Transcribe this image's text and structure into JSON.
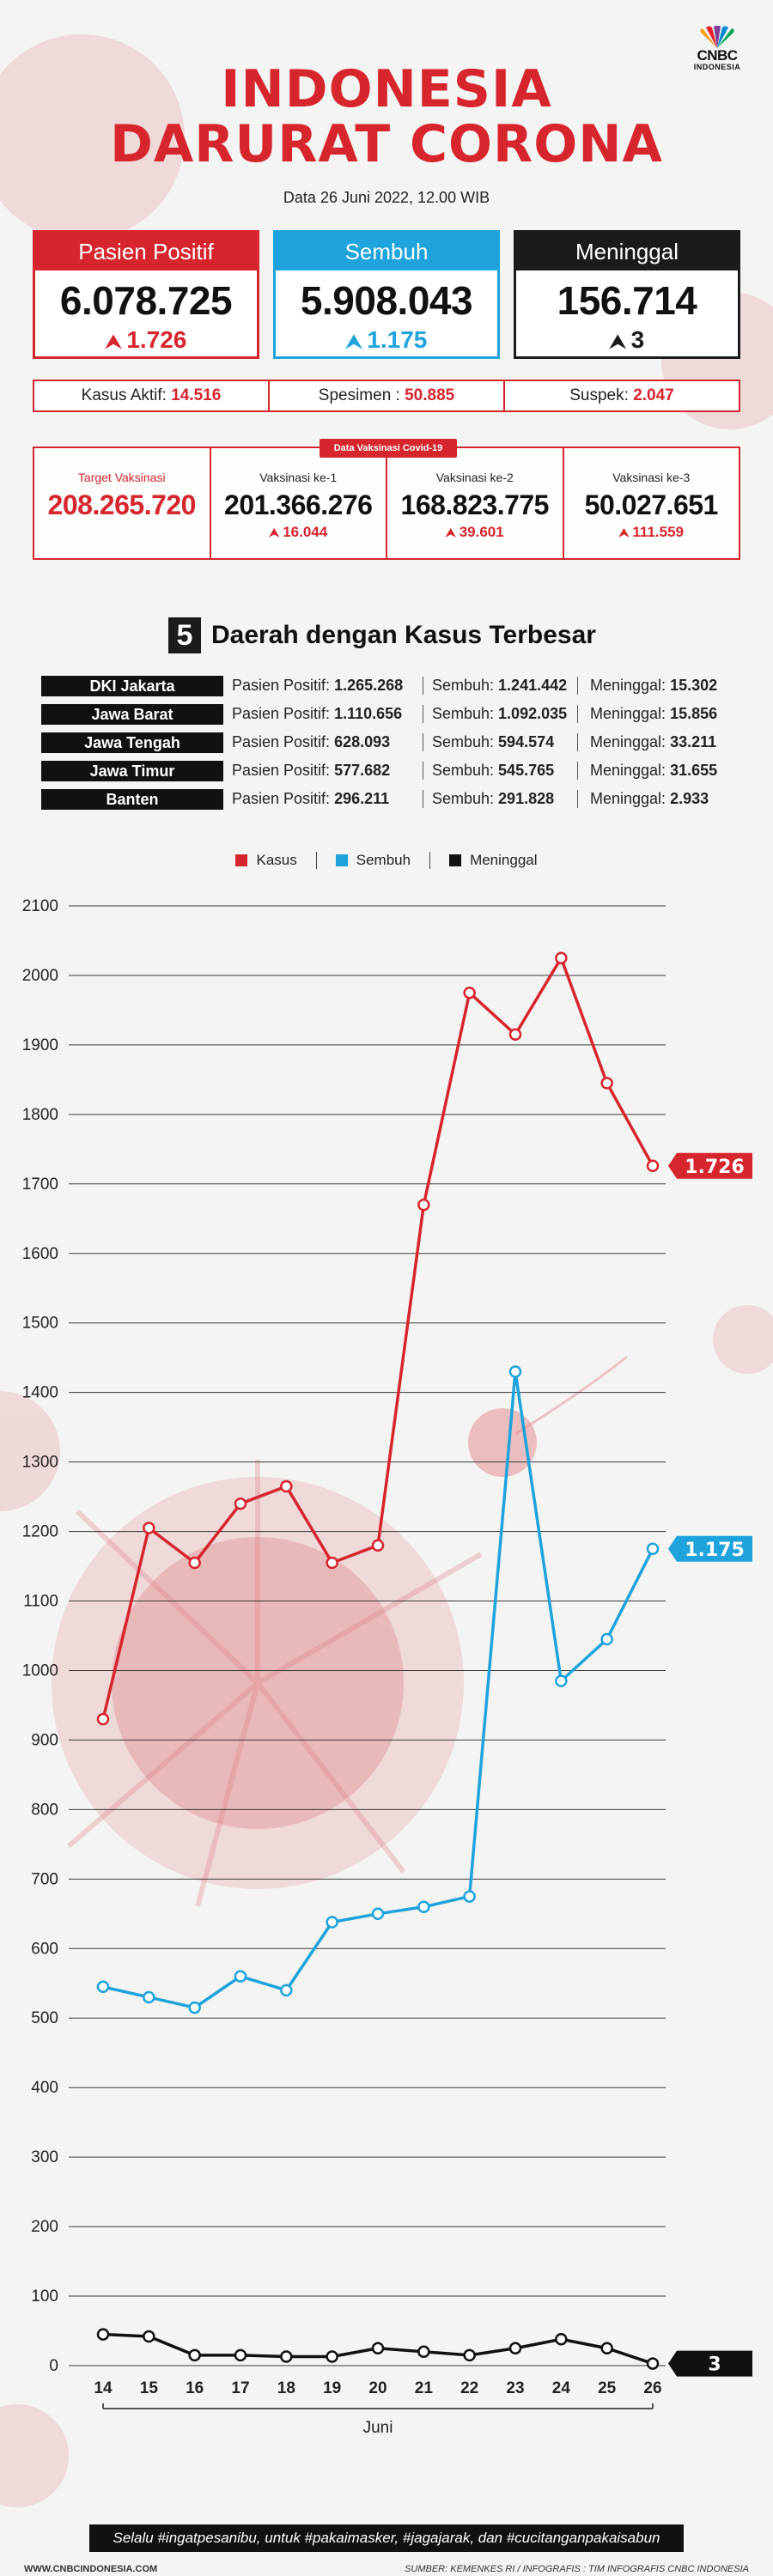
{
  "header": {
    "logo_text": "CNBC",
    "logo_sub": "INDONESIA",
    "title_line1": "INDONESIA",
    "title_line2": "DARURAT CORONA",
    "date": "Data 26 Juni 2022, 12.00 WIB"
  },
  "cards": [
    {
      "label": "Pasien Positif",
      "value": "6.078.725",
      "delta": "1.726",
      "color": "#d7252d"
    },
    {
      "label": "Sembuh",
      "value": "5.908.043",
      "delta": "1.175",
      "color": "#1ea3dd"
    },
    {
      "label": "Meninggal",
      "value": "156.714",
      "delta": "3",
      "color": "#1b1b1b"
    }
  ],
  "info": {
    "aktif_label": "Kasus Aktif: ",
    "aktif_value": "14.516",
    "spesimen_label": "Spesimen : ",
    "spesimen_value": "50.885",
    "suspek_label": "Suspek: ",
    "suspek_value": "2.047"
  },
  "vaccination": {
    "tag": "Data Vaksinasi Covid-19",
    "target_label": "Target Vaksinasi",
    "target_value": "208.265.720",
    "items": [
      {
        "label": "Vaksinasi ke-1",
        "value": "201.366.276",
        "delta": "16.044"
      },
      {
        "label": "Vaksinasi ke-2",
        "value": "168.823.775",
        "delta": "39.601"
      },
      {
        "label": "Vaksinasi ke-3",
        "value": "50.027.651",
        "delta": "111.559"
      }
    ]
  },
  "regions": {
    "number": "5",
    "title": "Daerah dengan Kasus Terbesar",
    "pos_label": "Pasien Positif: ",
    "sem_label": "Sembuh: ",
    "men_label": "Meninggal: ",
    "rows": [
      {
        "name": "DKI Jakarta",
        "positif": "1.265.268",
        "sembuh": "1.241.442",
        "meninggal": "15.302"
      },
      {
        "name": "Jawa Barat",
        "positif": "1.110.656",
        "sembuh": "1.092.035",
        "meninggal": "15.856"
      },
      {
        "name": "Jawa Tengah",
        "positif": "628.093",
        "sembuh": "594.574",
        "meninggal": "33.211"
      },
      {
        "name": "Jawa Timur",
        "positif": "577.682",
        "sembuh": "545.765",
        "meninggal": "31.655"
      },
      {
        "name": "Banten",
        "positif": "296.211",
        "sembuh": "291.828",
        "meninggal": "2.933"
      }
    ]
  },
  "chart_data": {
    "type": "line",
    "x": [
      14,
      15,
      16,
      17,
      18,
      19,
      20,
      21,
      22,
      23,
      24,
      25,
      26
    ],
    "xlabel": "Juni",
    "ylim": [
      0,
      2100
    ],
    "yticks": [
      0,
      100,
      200,
      300,
      400,
      500,
      600,
      700,
      800,
      900,
      1000,
      1100,
      1200,
      1300,
      1400,
      1500,
      1600,
      1700,
      1800,
      1900,
      2000,
      2100
    ],
    "grid": true,
    "legend_position": "top-center",
    "series": [
      {
        "name": "Kasus",
        "color": "#d7252d",
        "end_label": "1.726",
        "values": [
          930,
          1205,
          1155,
          1240,
          1265,
          1155,
          1180,
          1670,
          1975,
          1915,
          2025,
          1845,
          1726
        ]
      },
      {
        "name": "Sembuh",
        "color": "#1ea3dd",
        "end_label": "1.175",
        "values": [
          545,
          530,
          515,
          560,
          540,
          638,
          650,
          660,
          675,
          1430,
          985,
          1045,
          1175
        ]
      },
      {
        "name": "Meninggal",
        "color": "#111111",
        "end_label": "3",
        "values": [
          45,
          42,
          15,
          15,
          13,
          13,
          25,
          20,
          15,
          25,
          38,
          25,
          3
        ]
      }
    ]
  },
  "footer": {
    "slogan": "Selalu #ingatpesanibu, untuk #pakaimasker, #jagajarak, dan #cucitanganpakaisabun",
    "site": "WWW.CNBCINDONESIA.COM",
    "source": "SUMBER: KEMENKES RI / INFOGRAFIS : TIM INFOGRAFIS CNBC INDONESIA"
  }
}
